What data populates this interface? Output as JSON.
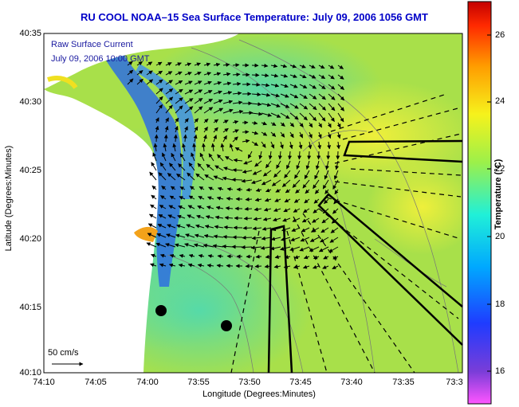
{
  "title": "RU COOL  NOAA–15  Sea Surface Temperature:  July 09, 2006 1056 GMT",
  "legend": {
    "line1": "Raw Surface Current",
    "line2": "July 09, 2006 10:00 GMT"
  },
  "scale_label": "50 cm/s",
  "axes": {
    "ylabel": "Latitude (Degrees:Minutes)",
    "xlabel": "Longitude (Degrees:Minutes)",
    "yticks": [
      "40:35",
      "40:30",
      "40:25",
      "40:20",
      "40:15",
      "40:10"
    ],
    "xticks": [
      "74:10",
      "74:05",
      "74:00",
      "73:55",
      "73:50",
      "73:45",
      "73:40",
      "73:35",
      "73:3"
    ]
  },
  "colorbar": {
    "label": "Temperature (°C)",
    "ticks": [
      "26",
      "24",
      "22",
      "20",
      "18",
      "16"
    ],
    "range": [
      15,
      27
    ]
  },
  "colors": {
    "title": "#0000c8",
    "annotation": "#1a1aa0",
    "ocean_main": "#a8e04a",
    "ocean_cool": "#33cccc",
    "upwelling": "#2e6fe0",
    "land": "#ffffff",
    "arrow": "#000000"
  }
}
